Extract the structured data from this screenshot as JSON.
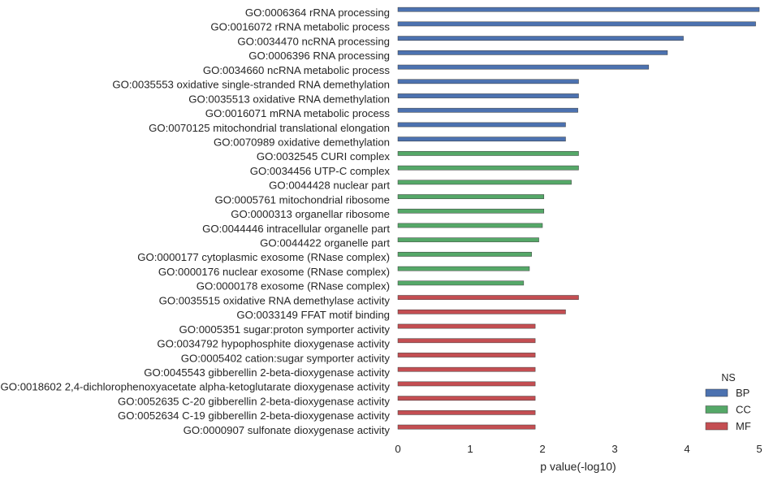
{
  "chart_data": {
    "type": "bar",
    "orientation": "horizontal",
    "categories": [
      "GO:0006364 rRNA processing",
      "GO:0016072 rRNA metabolic process",
      "GO:0034470 ncRNA processing",
      "GO:0006396 RNA processing",
      "GO:0034660 ncRNA metabolic process",
      "GO:0035553 oxidative single-stranded RNA demethylation",
      "GO:0035513 oxidative RNA demethylation",
      "GO:0016071 mRNA metabolic process",
      "GO:0070125 mitochondrial translational elongation",
      "GO:0070989 oxidative demethylation",
      "GO:0032545 CURI complex",
      "GO:0034456 UTP-C complex",
      "GO:0044428 nuclear part",
      "GO:0005761 mitochondrial ribosome",
      "GO:0000313 organellar ribosome",
      "GO:0044446 intracellular organelle part",
      "GO:0044422 organelle part",
      "GO:0000177 cytoplasmic exosome (RNase complex)",
      "GO:0000176 nuclear exosome (RNase complex)",
      "GO:0000178 exosome (RNase complex)",
      "GO:0035515 oxidative RNA demethylase activity",
      "GO:0033149 FFAT motif binding",
      "GO:0005351 sugar:proton symporter activity",
      "GO:0034792 hypophosphite dioxygenase activity",
      "GO:0005402 cation:sugar symporter activity",
      "GO:0045543 gibberellin 2-beta-dioxygenase activity",
      "GO:0018602 2,4-dichlorophenoxyacetate alpha-ketoglutarate dioxygenase activity",
      "GO:0052635 C-20 gibberellin 2-beta-dioxygenase activity",
      "GO:0052634 C-19 gibberellin 2-beta-dioxygenase activity",
      "GO:0000907 sulfonate dioxygenase activity"
    ],
    "values": [
      5.0,
      4.95,
      3.95,
      3.73,
      3.47,
      2.5,
      2.5,
      2.49,
      2.32,
      2.32,
      2.5,
      2.5,
      2.4,
      2.02,
      2.02,
      2.0,
      1.95,
      1.85,
      1.82,
      1.74,
      2.5,
      2.32,
      1.9,
      1.9,
      1.9,
      1.9,
      1.9,
      1.9,
      1.9,
      1.9
    ],
    "groups": [
      "BP",
      "BP",
      "BP",
      "BP",
      "BP",
      "BP",
      "BP",
      "BP",
      "BP",
      "BP",
      "CC",
      "CC",
      "CC",
      "CC",
      "CC",
      "CC",
      "CC",
      "CC",
      "CC",
      "CC",
      "MF",
      "MF",
      "MF",
      "MF",
      "MF",
      "MF",
      "MF",
      "MF",
      "MF",
      "MF"
    ],
    "xlabel": "p value(-log10)",
    "xlim": [
      0,
      5
    ],
    "xticks": [
      "0",
      "1",
      "2",
      "3",
      "4",
      "5"
    ],
    "grid": false,
    "legend": {
      "title": "NS",
      "placement": "bottom-right",
      "entries": [
        {
          "name": "BP",
          "color": "#4c72b0"
        },
        {
          "name": "CC",
          "color": "#55a868"
        },
        {
          "name": "MF",
          "color": "#c44e52"
        }
      ]
    }
  }
}
